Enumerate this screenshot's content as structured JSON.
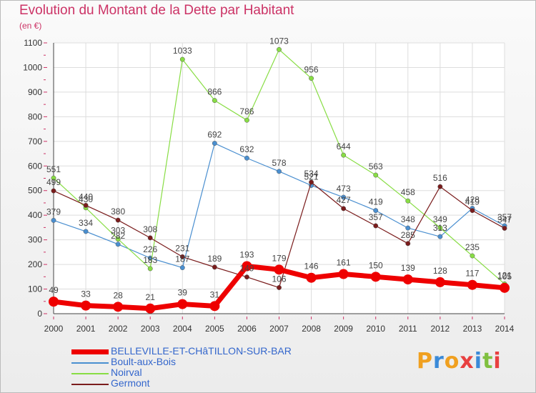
{
  "chart_data": {
    "type": "line",
    "title": "Evolution du Montant de la Dette par Habitant",
    "subtitle": "(en €)",
    "x": [
      "2000",
      "2001",
      "2002",
      "2003",
      "2004",
      "2005",
      "2006",
      "2007",
      "2008",
      "2009",
      "2010",
      "2011",
      "2012",
      "2013",
      "2014"
    ],
    "yticks": [
      0,
      100,
      200,
      300,
      400,
      500,
      600,
      700,
      800,
      900,
      1000,
      1100
    ],
    "ylim": [
      0,
      1100
    ],
    "grid": true,
    "legend_position": "bottom-left",
    "series": [
      {
        "name": "BELLEVILLE-ET-CHâTILLON-SUR-BAR",
        "color": "#ee0000",
        "values": [
          49,
          33,
          28,
          21,
          39,
          31,
          193,
          179,
          146,
          161,
          150,
          139,
          128,
          117,
          105
        ]
      },
      {
        "name": "Boult-aux-Bois",
        "color": "#4a8fd0",
        "values": [
          379,
          334,
          282,
          226,
          187,
          692,
          632,
          578,
          521,
          473,
          419,
          348,
          313,
          428,
          357
        ]
      },
      {
        "name": "Noirval",
        "color": "#88dd44",
        "values": [
          551,
          430,
          303,
          183,
          1033,
          866,
          786,
          1073,
          956,
          644,
          563,
          458,
          349,
          235,
          121
        ]
      },
      {
        "name": "Germont",
        "color": "#7a1c1c",
        "values": [
          499,
          440,
          380,
          308,
          231,
          189,
          149,
          106,
          534,
          427,
          357,
          285,
          516,
          419,
          347
        ]
      }
    ],
    "point_labels": {
      "BELLEVILLE-ET-CHâTILLON-SUR-BAR": [
        "49",
        "33",
        "28",
        "21",
        "39",
        "31",
        "193",
        "179",
        "146",
        "161",
        "150",
        "139",
        "128",
        "117",
        "105"
      ],
      "Boult-aux-Bois": [
        "379",
        "334",
        "282",
        "226",
        "187",
        "692",
        "632",
        "578",
        "521",
        "473",
        "419",
        "348",
        "313",
        "428",
        "357"
      ],
      "Noirval": [
        "551",
        "430",
        "303",
        "183",
        "1033",
        "866",
        "786",
        "1073",
        "956",
        "644",
        "563",
        "458",
        "349",
        "235",
        "121"
      ],
      "Germont": [
        "499",
        "440",
        "380",
        "308",
        "231",
        "189",
        "149",
        "106",
        "534",
        "427",
        "357",
        "285",
        "516",
        "419",
        "347"
      ]
    }
  },
  "logo": {
    "text": "Proxiti"
  }
}
